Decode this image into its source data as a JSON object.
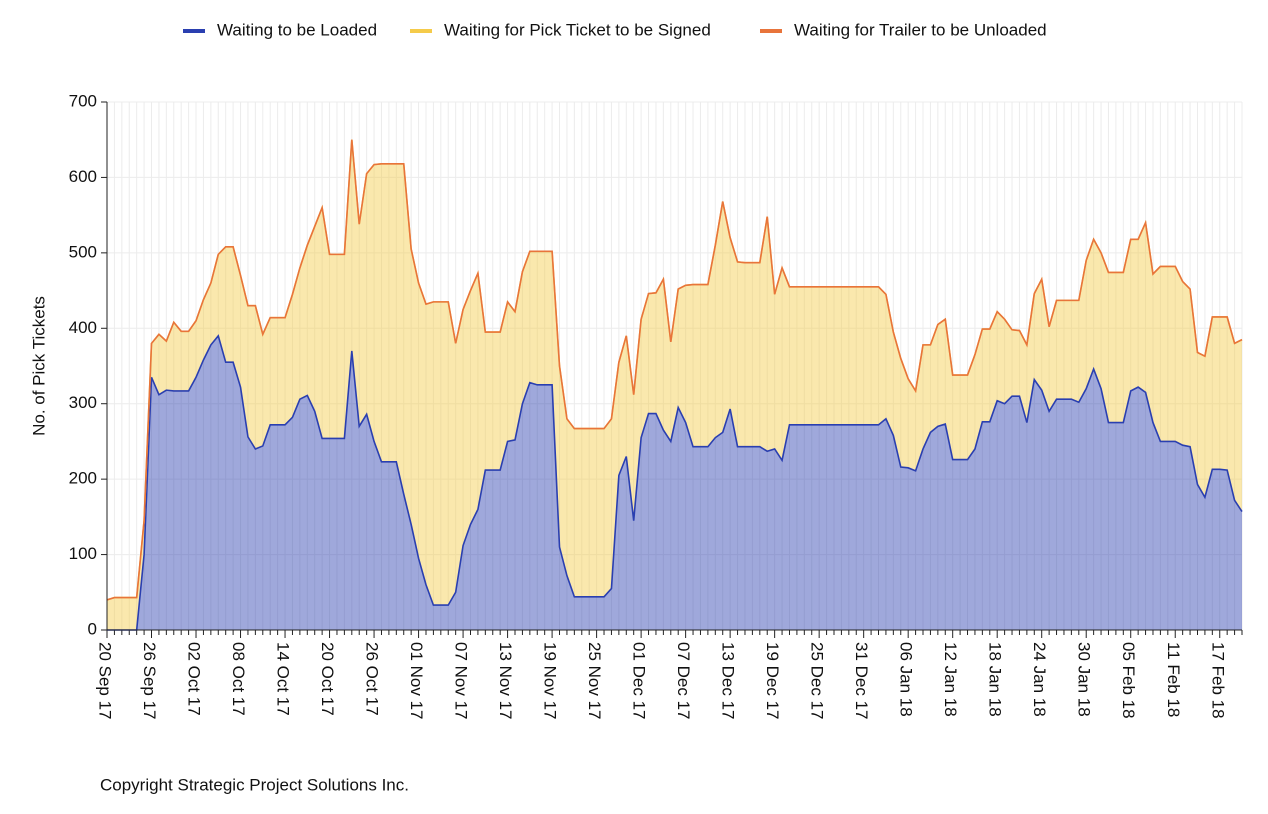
{
  "chart_data": {
    "type": "stacked-area",
    "y_label": "No. of Pick Tickets",
    "footer": "Copyright Strategic Project Solutions Inc.",
    "ylim": [
      0,
      700
    ],
    "yticks": [
      0,
      100,
      200,
      300,
      400,
      500,
      600,
      700
    ],
    "grid": true,
    "categories": [
      "20 Sep 17",
      null,
      null,
      null,
      null,
      null,
      "26 Sep 17",
      null,
      null,
      null,
      null,
      null,
      "02 Oct 17",
      null,
      null,
      null,
      null,
      null,
      "08 Oct 17",
      null,
      null,
      null,
      null,
      null,
      "14 Oct 17",
      null,
      null,
      null,
      null,
      null,
      "20 Oct 17",
      null,
      null,
      null,
      null,
      null,
      "26 Oct 17",
      null,
      null,
      null,
      null,
      null,
      "01 Nov 17",
      null,
      null,
      null,
      null,
      null,
      "07 Nov 17",
      null,
      null,
      null,
      null,
      null,
      "13 Nov 17",
      null,
      null,
      null,
      null,
      null,
      "19 Nov 17",
      null,
      null,
      null,
      null,
      null,
      "25 Nov 17",
      null,
      null,
      null,
      null,
      null,
      "01 Dec 17",
      null,
      null,
      null,
      null,
      null,
      "07 Dec 17",
      null,
      null,
      null,
      null,
      null,
      "13 Dec 17",
      null,
      null,
      null,
      null,
      null,
      "19 Dec 17",
      null,
      null,
      null,
      null,
      null,
      "25 Dec 17",
      null,
      null,
      null,
      null,
      null,
      "31 Dec 17",
      null,
      null,
      null,
      null,
      null,
      "06 Jan 18",
      null,
      null,
      null,
      null,
      null,
      "12 Jan 18",
      null,
      null,
      null,
      null,
      null,
      "18 Jan 18",
      null,
      null,
      null,
      null,
      null,
      "24 Jan 18",
      null,
      null,
      null,
      null,
      null,
      "30 Jan 18",
      null,
      null,
      null,
      null,
      null,
      "05 Feb 18",
      null,
      null,
      null,
      null,
      null,
      "11 Feb 18",
      null,
      null,
      null,
      null,
      null,
      "17 Feb 18",
      null,
      null,
      null
    ],
    "series": [
      {
        "name": "Waiting to be Loaded",
        "color": "#2a3fb0",
        "values": [
          0,
          0,
          0,
          0,
          0,
          100,
          335,
          312,
          318,
          317,
          317,
          317,
          335,
          358,
          378,
          390,
          355,
          355,
          322,
          256,
          240,
          244,
          272,
          272,
          272,
          282,
          306,
          311,
          290,
          254,
          254,
          254,
          254,
          370,
          270,
          286,
          250,
          223,
          223,
          223,
          180,
          140,
          95,
          60,
          33,
          33,
          33,
          50,
          112,
          140,
          160,
          212,
          212,
          212,
          250,
          252,
          300,
          328,
          325,
          325,
          325,
          110,
          72,
          44,
          44,
          44,
          44,
          44,
          55,
          205,
          230,
          145,
          255,
          287,
          287,
          265,
          250,
          295,
          275,
          243,
          243,
          243,
          255,
          262,
          293,
          243,
          243,
          243,
          243,
          237,
          240,
          225,
          272,
          272,
          272,
          272,
          272,
          272,
          272,
          272,
          272,
          272,
          272,
          272,
          272,
          280,
          258,
          216,
          215,
          211,
          240,
          262,
          270,
          273,
          226,
          226,
          226,
          240,
          276,
          276,
          304,
          300,
          310,
          310,
          275,
          332,
          318,
          290,
          306,
          306,
          306,
          302,
          320,
          346,
          320,
          275,
          275,
          275,
          317,
          322,
          315,
          275,
          250,
          250,
          250,
          245,
          243,
          193,
          176,
          213,
          213,
          212,
          172,
          157
        ]
      },
      {
        "name": "Waiting for Pick Ticket to be Signed",
        "color": "#f5cb4a",
        "values": [
          40,
          43,
          43,
          43,
          43,
          45,
          45,
          80,
          65,
          91,
          79,
          79,
          75,
          80,
          82,
          108,
          153,
          153,
          148,
          174,
          190,
          148,
          142,
          142,
          142,
          163,
          174,
          199,
          245,
          306,
          244,
          244,
          244,
          280,
          268,
          319,
          367,
          395,
          395,
          395,
          438,
          365,
          365,
          372,
          402,
          402,
          402,
          330,
          313,
          310,
          313,
          183,
          183,
          183,
          185,
          170,
          175,
          174,
          177,
          177,
          177,
          240,
          208,
          223,
          223,
          223,
          223,
          223,
          225,
          150,
          160,
          167,
          157,
          159,
          160,
          200,
          132,
          157,
          182,
          215,
          215,
          215,
          255,
          306,
          227,
          245,
          244,
          244,
          244,
          311,
          205,
          255,
          183,
          183,
          183,
          183,
          183,
          183,
          183,
          183,
          183,
          183,
          183,
          183,
          183,
          165,
          137,
          144,
          118,
          106,
          138,
          116,
          135,
          139,
          112,
          112,
          112,
          125,
          123,
          123,
          118,
          112,
          88,
          87,
          103,
          114,
          147,
          112,
          131,
          131,
          131,
          135,
          170,
          172,
          180,
          199,
          199,
          199,
          201,
          196,
          225,
          197,
          232,
          232,
          232,
          217,
          209,
          175,
          187,
          202,
          202,
          203,
          208,
          228
        ]
      },
      {
        "name": "Waiting for Trailer to be Unloaded",
        "color": "#e8743b",
        "values": [
          0,
          0,
          0,
          0,
          0,
          0,
          0,
          0,
          0,
          0,
          0,
          0,
          0,
          0,
          0,
          0,
          0,
          0,
          0,
          0,
          0,
          0,
          0,
          0,
          0,
          0,
          0,
          0,
          0,
          0,
          0,
          0,
          0,
          0,
          0,
          0,
          0,
          0,
          0,
          0,
          0,
          0,
          0,
          0,
          0,
          0,
          0,
          0,
          0,
          0,
          0,
          0,
          0,
          0,
          0,
          0,
          0,
          0,
          0,
          0,
          0,
          0,
          0,
          0,
          0,
          0,
          0,
          0,
          0,
          0,
          0,
          0,
          0,
          0,
          0,
          0,
          0,
          0,
          0,
          0,
          0,
          0,
          0,
          0,
          0,
          0,
          0,
          0,
          0,
          0,
          0,
          0,
          0,
          0,
          0,
          0,
          0,
          0,
          0,
          0,
          0,
          0,
          0,
          0,
          0,
          0,
          0,
          0,
          0,
          0,
          0,
          0,
          0,
          0,
          0,
          0,
          0,
          0,
          0,
          0,
          0,
          0,
          0,
          0,
          0,
          0,
          0,
          0,
          0,
          0,
          0,
          0,
          0,
          0,
          0,
          0,
          0,
          0,
          0,
          0,
          0,
          0,
          0,
          0,
          0,
          0,
          0,
          0,
          0,
          0,
          0,
          0,
          0,
          0
        ]
      }
    ]
  }
}
